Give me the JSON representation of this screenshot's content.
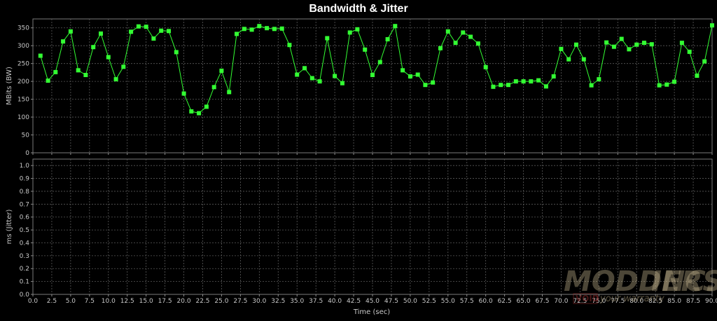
{
  "chart_data": {
    "type": "line",
    "title": "Bandwidth & Jitter",
    "xlabel": "Time (sec)",
    "xlim": [
      0,
      90
    ],
    "x_ticks": [
      "0.0",
      "2.5",
      "5.0",
      "7.5",
      "10.0",
      "12.5",
      "15.0",
      "17.5",
      "20.0",
      "22.5",
      "25.0",
      "27.5",
      "30.0",
      "32.5",
      "35.0",
      "37.5",
      "40.0",
      "42.5",
      "45.0",
      "47.5",
      "50.0",
      "52.5",
      "55.0",
      "57.5",
      "60.0",
      "62.5",
      "65.0",
      "67.5",
      "70.0",
      "72.5",
      "75.0",
      "77.5",
      "80.0",
      "82.5",
      "85.0",
      "87.5",
      "90.0"
    ],
    "panels": [
      {
        "ylabel": "MBits (BW)",
        "ylim": [
          0,
          375
        ],
        "y_ticks": [
          "0",
          "50",
          "100",
          "150",
          "200",
          "250",
          "300",
          "350"
        ],
        "grid": true,
        "series": [
          {
            "color": "#33ff33",
            "x": [
              1,
              2,
              3,
              4,
              5,
              6,
              7,
              8,
              9,
              10,
              11,
              12,
              13,
              14,
              15,
              16,
              17,
              18,
              19,
              20,
              21,
              22,
              23,
              24,
              25,
              26,
              27,
              28,
              29,
              30,
              31,
              32,
              33,
              34,
              35,
              36,
              37,
              38,
              39,
              40,
              41,
              42,
              43,
              44,
              45,
              46,
              47,
              48,
              49,
              50,
              51,
              52,
              53,
              54,
              55,
              56,
              57,
              58,
              59,
              60,
              61,
              62,
              63,
              64,
              65,
              66,
              67,
              68,
              69,
              70,
              71,
              72,
              73,
              74,
              75,
              76,
              77,
              78,
              79,
              80,
              81,
              82,
              83,
              84,
              85,
              86,
              87,
              88,
              89,
              90
            ],
            "y": [
              272,
              202,
              226,
              312,
              340,
              231,
              218,
              296,
              334,
              268,
              206,
              241,
              339,
              354,
              353,
              320,
              342,
              341,
              282,
              166,
              116,
              111,
              129,
              184,
              230,
              170,
              333,
              347,
              345,
              355,
              349,
              347,
              348,
              302,
              219,
              237,
              209,
              200,
              321,
              215,
              195,
              337,
              346,
              289,
              218,
              254,
              318,
              355,
              231,
              214,
              219,
              190,
              197,
              293,
              340,
              308,
              337,
              325,
              306,
              240,
              185,
              190,
              190,
              200,
              200,
              200,
              203,
              186,
              214,
              291,
              262,
              303,
              262,
              189,
              206,
              309,
              297,
              319,
              290,
              303,
              308,
              304,
              189,
              191,
              199,
              308,
              283,
              216,
              256,
              357
            ]
          }
        ]
      },
      {
        "ylabel": "ms (Jitter)",
        "ylim": [
          0,
          1.05
        ],
        "y_ticks": [
          "0.0",
          "0.1",
          "0.2",
          "0.3",
          "0.4",
          "0.5",
          "0.6",
          "0.7",
          "0.8",
          "0.9",
          "1.0"
        ],
        "grid": true,
        "series": []
      }
    ]
  },
  "watermark": {
    "brand": "MODDERS INC.",
    "tagline": "void your warranty",
    "stamp": "VOID",
    "color": "#c9b890"
  }
}
